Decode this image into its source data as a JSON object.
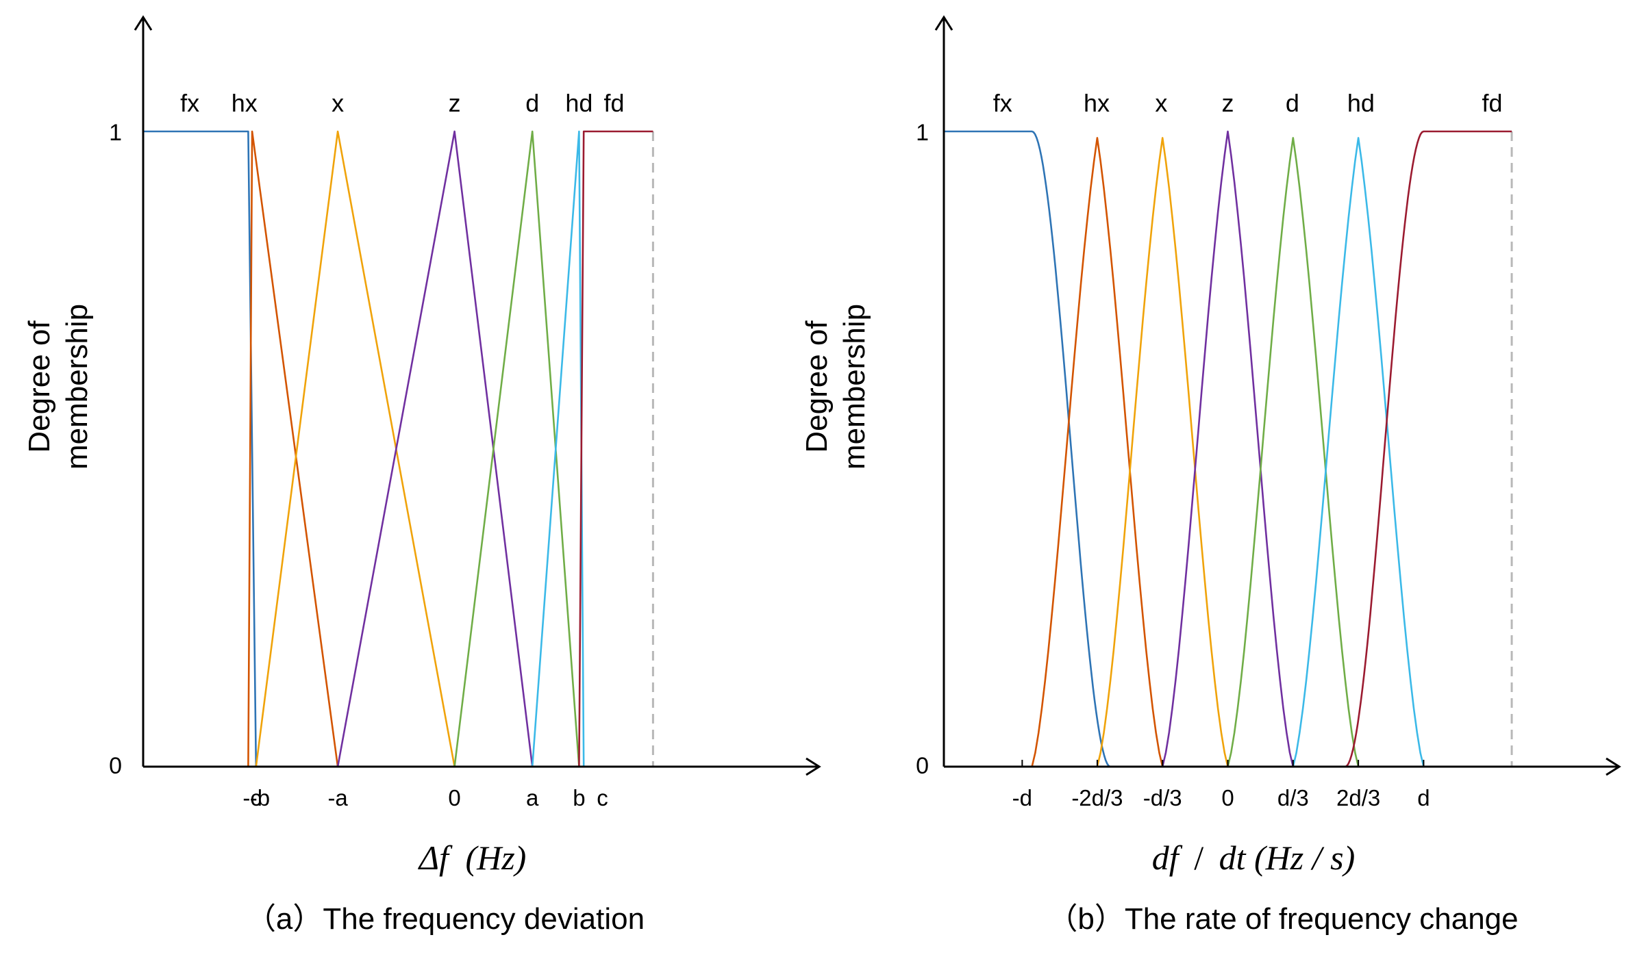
{
  "chart_data": [
    {
      "type": "line",
      "title": "（a）The frequency deviation",
      "xlabel": "Δf (Hz)",
      "xlabel_parts": {
        "var": "Δf",
        "unit": "(Hz)"
      },
      "ylabel_line1": "Degree of",
      "ylabel_line2": "membership",
      "y_ticks": [
        {
          "value": 0,
          "label": "0"
        },
        {
          "value": 1,
          "label": "1"
        }
      ],
      "ylim": [
        0,
        1
      ],
      "x_scale": "normalized symbolic axis, x = position in units of a (c at 2.6)",
      "xlim": [
        -4,
        4.5
      ],
      "x_ticks": [
        {
          "value": -2.6,
          "label": "-c"
        },
        {
          "value": -2.5,
          "label": "-b"
        },
        {
          "value": -1.5,
          "label": "-a"
        },
        {
          "value": 0,
          "label": "0"
        },
        {
          "value": 1,
          "label": "a"
        },
        {
          "value": 1.6,
          "label": "b"
        },
        {
          "value": 1.9,
          "label": "c"
        }
      ],
      "end_marker_x": 2.55,
      "end_marker_color": "#b8b8b8",
      "series": [
        {
          "name": "fx",
          "color": "#2e74b5",
          "label_x": -3.4,
          "points": [
            [
              -4,
              1
            ],
            [
              -2.65,
              1
            ],
            [
              -2.55,
              0
            ]
          ]
        },
        {
          "name": "hx",
          "color": "#d35400",
          "label_x": -2.7,
          "points": [
            [
              -2.65,
              0
            ],
            [
              -2.6,
              1
            ],
            [
              -1.5,
              0
            ]
          ]
        },
        {
          "name": "x",
          "color": "#f0a30a",
          "label_x": -1.5,
          "points": [
            [
              -2.55,
              0
            ],
            [
              -1.5,
              1
            ],
            [
              0,
              0
            ]
          ]
        },
        {
          "name": "z",
          "color": "#7030a0",
          "label_x": 0,
          "points": [
            [
              -1.5,
              0
            ],
            [
              0,
              1
            ],
            [
              1,
              0
            ]
          ]
        },
        {
          "name": "d",
          "color": "#70ad47",
          "label_x": 1,
          "points": [
            [
              0,
              0
            ],
            [
              1,
              1
            ],
            [
              1.6,
              0
            ]
          ]
        },
        {
          "name": "hd",
          "color": "#3bb9e8",
          "label_x": 1.6,
          "points": [
            [
              1,
              0
            ],
            [
              1.6,
              1
            ],
            [
              1.66,
              0
            ]
          ]
        },
        {
          "name": "fd",
          "color": "#9b1b30",
          "label_x": 2.05,
          "points": [
            [
              1.6,
              0
            ],
            [
              1.66,
              1
            ],
            [
              2.55,
              1
            ]
          ]
        }
      ]
    },
    {
      "type": "line",
      "title": "（b）The rate of frequency change",
      "xlabel": "df / dt(Hz / s)",
      "xlabel_parts": {
        "var": "df",
        "sep": "/",
        "var2": "dt",
        "unit": "(Hz / s)"
      },
      "ylabel_line1": "Degree of",
      "ylabel_line2": "membership",
      "y_ticks": [
        {
          "value": 0,
          "label": "0"
        },
        {
          "value": 1,
          "label": "1"
        }
      ],
      "ylim": [
        0,
        1
      ],
      "x_scale": "x in units of d",
      "xlim": [
        -1.45,
        1.95
      ],
      "x_ticks": [
        {
          "value": -1.05,
          "label": "-d"
        },
        {
          "value": -0.6667,
          "label": "-2d/3"
        },
        {
          "value": -0.3333,
          "label": "-d/3"
        },
        {
          "value": 0,
          "label": "0"
        },
        {
          "value": 0.3333,
          "label": "d/3"
        },
        {
          "value": 0.6667,
          "label": "2d/3"
        },
        {
          "value": 1.0,
          "label": "d"
        }
      ],
      "end_marker_x": 1.45,
      "end_marker_color": "#b8b8b8",
      "series": [
        {
          "name": "fx",
          "color": "#2e74b5",
          "label_x": -1.15,
          "shape": "z-shaped",
          "params": [
            -1.0,
            -0.6
          ],
          "points_to": 1.45,
          "start": -1.45
        },
        {
          "name": "hx",
          "color": "#d35400",
          "label_x": -0.67,
          "shape": "triangle",
          "params": [
            -1.0,
            -0.6667,
            -0.3333
          ],
          "peak": 0.99
        },
        {
          "name": "x",
          "color": "#f0a30a",
          "label_x": -0.34,
          "shape": "triangle",
          "params": [
            -0.6667,
            -0.3333,
            0
          ],
          "peak": 0.99
        },
        {
          "name": "z",
          "color": "#7030a0",
          "label_x": 0,
          "shape": "triangle",
          "params": [
            -0.3333,
            0,
            0.3333
          ],
          "peak": 1.0
        },
        {
          "name": "d",
          "color": "#70ad47",
          "label_x": 0.33,
          "shape": "triangle",
          "params": [
            0,
            0.3333,
            0.6667
          ],
          "peak": 0.99
        },
        {
          "name": "hd",
          "color": "#3bb9e8",
          "label_x": 0.68,
          "shape": "triangle",
          "params": [
            0.3333,
            0.6667,
            1.0
          ],
          "peak": 0.99
        },
        {
          "name": "fd",
          "color": "#9b1b30",
          "label_x": 1.35,
          "shape": "s-shaped",
          "params": [
            0.6,
            1.0
          ],
          "end": 1.45
        }
      ]
    }
  ]
}
